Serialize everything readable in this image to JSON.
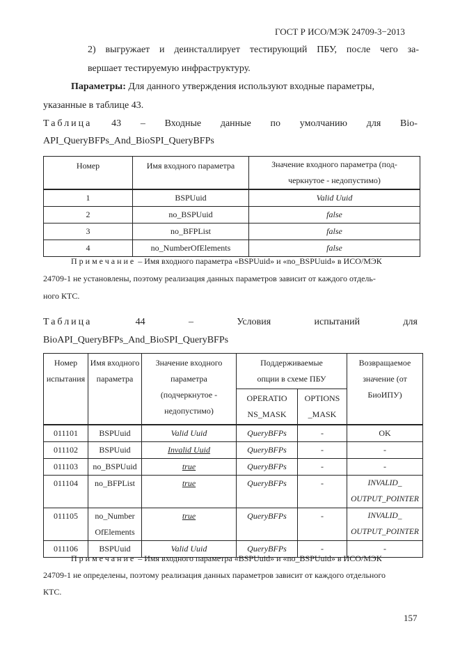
{
  "header": "ГОСТ Р ИСО/МЭК 24709-3−2013",
  "para1": [
    "2) выгружает и деинсталлирует тестирующий ПБУ, после чего за-",
    "вершает тестируемую инфраструктуру."
  ],
  "params_bold": "Параметры:",
  "params_text": "Для данного утверждения используют входные параметры,",
  "params_text2": "указанные в таблице 43.",
  "table43_caption": [
    "Таблица",
    "43",
    "–",
    "Входные",
    "данные",
    "по",
    "умолчанию",
    "для",
    "Bio-"
  ],
  "table43_caption2": "API_QueryBFPs_And_BioSPI_QueryBFPs",
  "table43": {
    "headers": [
      "Номер",
      "Имя входного параметра",
      "Значение входного параметра (под-черкнутое - недопустимо)"
    ],
    "rows": [
      [
        "1",
        "BSPUuid",
        "Valid Uuid"
      ],
      [
        "2",
        "no_BSPUuid",
        "false"
      ],
      [
        "3",
        "no_BFPList",
        "false"
      ],
      [
        "4",
        "no_NumberOfElements",
        "false"
      ]
    ]
  },
  "note1": {
    "label": "Примечание",
    "text": " – Имя входного параметра «BSPUuid» и «no_BSPUuid» в ИСО/МЭК",
    "line2": "24709-1 не установлены, поэтому реализация данных параметров зависит от каждого отдель-",
    "line3": "ного КТС."
  },
  "table44_caption": [
    "Таблица",
    "44",
    "–",
    "Условия",
    "испытаний",
    "для"
  ],
  "table44_caption2": "BioAPI_QueryBFPs_And_BioSPI_QueryBFPs",
  "table44": {
    "headers": [
      "Номер испытания",
      "Имя входного параметра",
      "Значение входного параметра (подчеркнутое - недопустимо)",
      "Поддерживаемые опции в схеме ПБУ",
      "Возвращаемое значение (от БиоИПУ)"
    ],
    "subheaders": [
      "OPERATIO NS_MASK",
      "OPTIONS _MASK"
    ],
    "rows": [
      [
        "011101",
        "BSPUuid",
        "Valid Uuid",
        "QueryBFPs",
        "-",
        "OK"
      ],
      [
        "011102",
        "BSPUuid",
        "Invalid Uuid",
        "QueryBFPs",
        "-",
        "-"
      ],
      [
        "011103",
        "no_BSPUuid",
        "true",
        "QueryBFPs",
        "-",
        "-"
      ],
      [
        "011104",
        "no_BFPList",
        "true",
        "QueryBFPs",
        "-",
        "INVALID_ OUTPUT_POINTER"
      ],
      [
        "011105",
        "no_Number OfElements",
        "true",
        "QueryBFPs",
        "-",
        "INVALID_ OUTPUT_POINTER"
      ],
      [
        "011106",
        "BSPUuid",
        "Valid Uuid",
        "QueryBFPs",
        "-",
        "-"
      ]
    ],
    "underlined_rows": [
      1,
      2,
      3,
      4
    ]
  },
  "note2": {
    "label": "Примечание",
    "text": " – Имя входного параметра «BSPUuid» и «no_BSPUuid» в ИСО/МЭК",
    "line2": "24709-1 не определены, поэтому реализация данных параметров зависит от каждого отдельного",
    "line3": "КТС."
  },
  "page_number": "157"
}
